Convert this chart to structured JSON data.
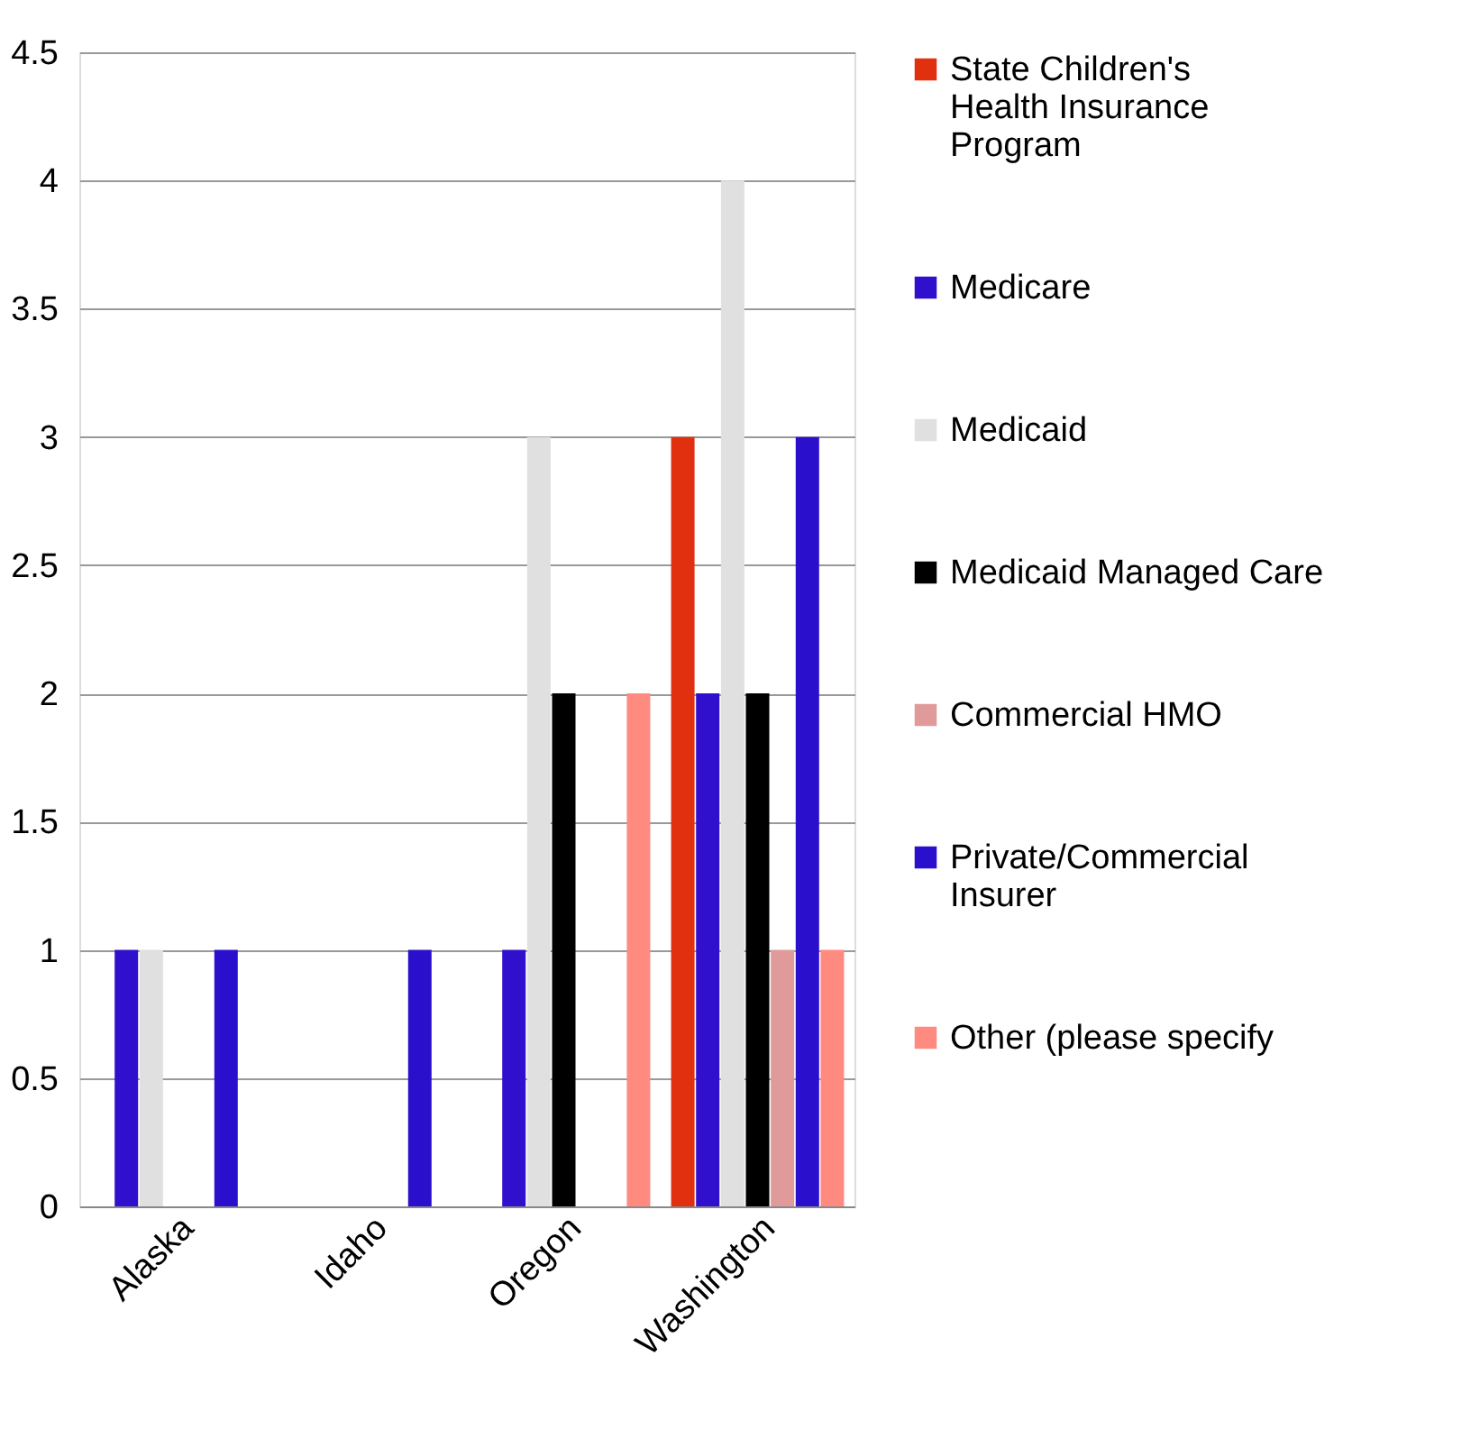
{
  "chart_data": {
    "type": "bar",
    "categories": [
      "Alaska",
      "Idaho",
      "Oregon",
      "Washington"
    ],
    "series": [
      {
        "name": "State Children's Health Insurance Program",
        "color": "#e03010",
        "values": [
          null,
          null,
          null,
          3
        ]
      },
      {
        "name": "Medicare",
        "color": "#3010cc",
        "values": [
          1,
          null,
          1,
          2
        ]
      },
      {
        "name": "Medicaid",
        "color": "#e0e0e0",
        "values": [
          1,
          null,
          3,
          4
        ]
      },
      {
        "name": "Medicaid Managed Care",
        "color": "#000000",
        "values": [
          null,
          null,
          2,
          2
        ]
      },
      {
        "name": "Commercial HMO",
        "color": "#e09a9a",
        "values": [
          null,
          null,
          null,
          1
        ]
      },
      {
        "name": "Private/Commercial Insurer",
        "color": "#2a0fcc",
        "values": [
          1,
          1,
          null,
          3
        ]
      },
      {
        "name": "Other (please specify",
        "color": "#ff8a80",
        "values": [
          null,
          null,
          2,
          1
        ]
      }
    ],
    "ylim": [
      0,
      4.5
    ],
    "yticks": [
      0,
      0.5,
      1,
      1.5,
      2,
      2.5,
      3,
      3.5,
      4,
      4.5
    ],
    "grid": "y",
    "legend": "right"
  }
}
